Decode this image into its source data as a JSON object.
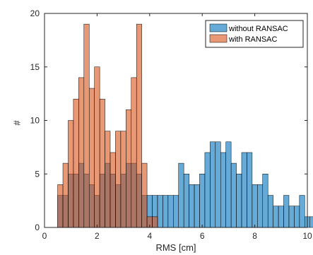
{
  "chart_data": {
    "type": "histogram",
    "xlabel": "RMS [cm]",
    "ylabel": "#",
    "xlim": [
      0,
      10
    ],
    "ylim": [
      0,
      20
    ],
    "xticks": [
      "0",
      "2",
      "4",
      "6",
      "8",
      "10"
    ],
    "yticks": [
      "0",
      "5",
      "10",
      "15",
      "20"
    ],
    "bin_width": 0.2,
    "grid": false,
    "legend_position": "top-right",
    "series": [
      {
        "name": "without RANSAC",
        "color": "#0072BD",
        "bin_start": 0.5,
        "counts": [
          3,
          3,
          5,
          5,
          6,
          5,
          4,
          3,
          5,
          6,
          5,
          4,
          5,
          6,
          6,
          5,
          3,
          3,
          3,
          3,
          3,
          3,
          3,
          6,
          5,
          4,
          4,
          5,
          7,
          8,
          8,
          7,
          8,
          6,
          5,
          7,
          7,
          4,
          4,
          5,
          3,
          2,
          2,
          3,
          2,
          2,
          3,
          1,
          1,
          1
        ]
      },
      {
        "name": "with RANSAC",
        "color": "#D95319",
        "bin_start": 0.5,
        "counts": [
          4,
          6,
          10,
          12,
          14,
          19,
          13,
          15,
          12,
          9,
          7,
          9,
          9,
          11,
          14,
          19,
          6,
          1,
          1
        ]
      }
    ]
  }
}
